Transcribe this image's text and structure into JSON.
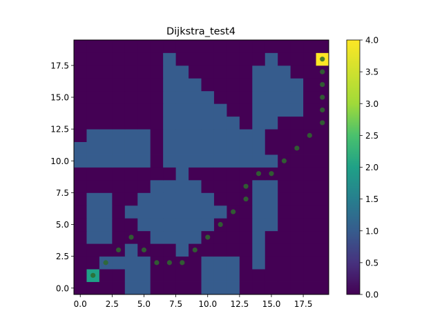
{
  "chart_data": {
    "type": "heatmap",
    "title": "Dijkstra_test4",
    "xlabel": "",
    "ylabel": "",
    "grid_size": [
      20,
      20
    ],
    "origin": "lower",
    "xlim": [
      -0.5,
      19.5
    ],
    "ylim": [
      -0.5,
      19.5
    ],
    "xticks": [
      0.0,
      2.5,
      5.0,
      7.5,
      10.0,
      12.5,
      15.0,
      17.5
    ],
    "xtick_labels": [
      "0.0",
      "2.5",
      "5.0",
      "7.5",
      "10.0",
      "12.5",
      "15.0",
      "17.5"
    ],
    "yticks": [
      0.0,
      2.5,
      5.0,
      7.5,
      10.0,
      12.5,
      15.0,
      17.5
    ],
    "ytick_labels": [
      "0.0",
      "2.5",
      "5.0",
      "7.5",
      "10.0",
      "12.5",
      "15.0",
      "17.5"
    ],
    "colormap": "viridis",
    "colorbar": {
      "vmin": 0.0,
      "vmax": 4.0,
      "ticks": [
        0.0,
        0.5,
        1.0,
        1.5,
        2.0,
        2.5,
        3.0,
        3.5,
        4.0
      ],
      "tick_labels": [
        "0.0",
        "0.5",
        "1.0",
        "1.5",
        "2.0",
        "2.5",
        "3.0",
        "3.5",
        "4.0"
      ]
    },
    "obstacle_value": 1,
    "obstacle_row_ranges": [
      [
        [
          4,
          5
        ],
        [
          10,
          12
        ]
      ],
      [
        [
          4,
          5
        ],
        [
          10,
          12
        ]
      ],
      [
        [
          2,
          5
        ],
        [
          10,
          12
        ],
        [
          14,
          14
        ]
      ],
      [
        [
          4,
          4
        ],
        [
          8,
          8
        ],
        [
          14,
          14
        ]
      ],
      [
        [
          1,
          2
        ],
        [
          6,
          9
        ],
        [
          14,
          14
        ]
      ],
      [
        [
          1,
          2
        ],
        [
          5,
          10
        ],
        [
          14,
          15
        ]
      ],
      [
        [
          1,
          2
        ],
        [
          4,
          11
        ],
        [
          14,
          15
        ]
      ],
      [
        [
          1,
          2
        ],
        [
          5,
          10
        ],
        [
          14,
          15
        ]
      ],
      [
        [
          6,
          9
        ],
        [
          14,
          15
        ]
      ],
      [
        [
          8,
          8
        ]
      ],
      [
        [
          0,
          5
        ],
        [
          7,
          15
        ]
      ],
      [
        [
          0,
          5
        ],
        [
          7,
          14
        ]
      ],
      [
        [
          1,
          5
        ],
        [
          7,
          14
        ]
      ],
      [
        [
          7,
          12
        ],
        [
          14,
          15
        ]
      ],
      [
        [
          7,
          11
        ],
        [
          14,
          17
        ]
      ],
      [
        [
          7,
          10
        ],
        [
          14,
          17
        ]
      ],
      [
        [
          7,
          9
        ],
        [
          14,
          17
        ]
      ],
      [
        [
          7,
          8
        ],
        [
          14,
          16
        ]
      ],
      [
        [
          7,
          7
        ],
        [
          15,
          15
        ]
      ],
      []
    ],
    "start": {
      "x": 1,
      "y": 1,
      "value": 2
    },
    "goal": {
      "x": 19,
      "y": 18,
      "value": 4
    },
    "path": {
      "x": [
        1,
        2,
        3,
        4,
        5,
        6,
        7,
        8,
        9,
        10,
        11,
        12,
        13,
        13,
        14,
        15,
        16,
        17,
        18,
        19,
        19,
        19,
        19,
        19,
        19
      ],
      "y": [
        1,
        2,
        3,
        4,
        3,
        2,
        2,
        2,
        3,
        4,
        5,
        6,
        7,
        8,
        9,
        9,
        10,
        11,
        12,
        13,
        14,
        15,
        16,
        17,
        18
      ],
      "color": "#2e6b2e"
    }
  }
}
